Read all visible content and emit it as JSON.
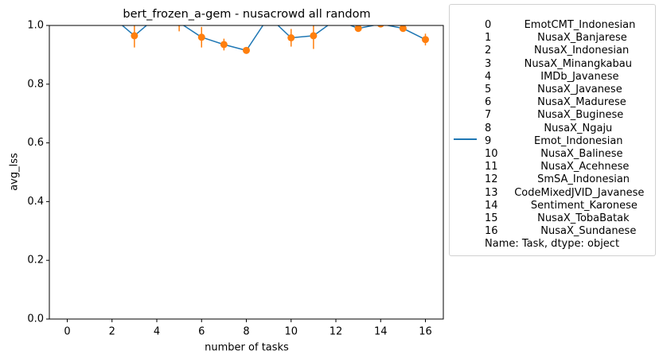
{
  "chart_data": {
    "type": "line",
    "title": "bert_frozen_a-gem - nusacrowd all random",
    "xlabel": "number of tasks",
    "ylabel": "avg_lss",
    "x": [
      0,
      1,
      2,
      3,
      4,
      5,
      6,
      7,
      8,
      9,
      10,
      11,
      12,
      13,
      14,
      15,
      16
    ],
    "series": [
      {
        "name": "0          EmotCMT_Indonesian\n1              NusaX_Banjarese\n2             NusaX_Indonesian\n3          NusaX_Minangkabau\n4               IMDb_Javanese\n5              NusaX_Javanese\n6              NusaX_Madurese\n7              NusaX_Buginese\n8                NusaX_Ngaju\n9             Emot_Indonesian\n10             NusaX_Balinese\n11             NusaX_Acehnese\n12            SmSA_Indonesian\n13     CodeMixedJVID_Javanese\n14          Sentiment_Karonese\n15            NusaX_TobaBatak\n16             NusaX_Sundanese\nName: Task, dtype: object",
        "color": "#1f77b4",
        "values": [
          1.02,
          1.02,
          1.03,
          0.965,
          1.03,
          1.01,
          0.96,
          0.935,
          0.915,
          1.03,
          0.958,
          0.965,
          1.02,
          0.99,
          1.005,
          0.99,
          0.952
        ]
      },
      {
        "color": "#ff7f0e",
        "values": [
          1.02,
          1.02,
          1.03,
          0.965,
          1.03,
          1.01,
          0.96,
          0.935,
          0.915,
          1.03,
          0.958,
          0.965,
          1.02,
          0.99,
          1.005,
          0.99,
          0.952
        ],
        "errors": [
          0.01,
          0.01,
          0.01,
          0.04,
          0.01,
          0.03,
          0.035,
          0.02,
          0.005,
          0.01,
          0.03,
          0.045,
          0.01,
          0.01,
          0.005,
          0.01,
          0.02
        ]
      }
    ],
    "xlim": [
      -0.8,
      16.8
    ],
    "xticks": [
      0,
      2,
      4,
      6,
      8,
      10,
      12,
      14,
      16
    ],
    "ylim": [
      0,
      1
    ],
    "yticks": [
      {
        "value": 0,
        "label": "0.0"
      },
      0.2,
      0.4,
      0.6,
      0.8,
      {
        "value": 1,
        "label": "1.0"
      }
    ],
    "grid": false,
    "legend": "outside right"
  }
}
